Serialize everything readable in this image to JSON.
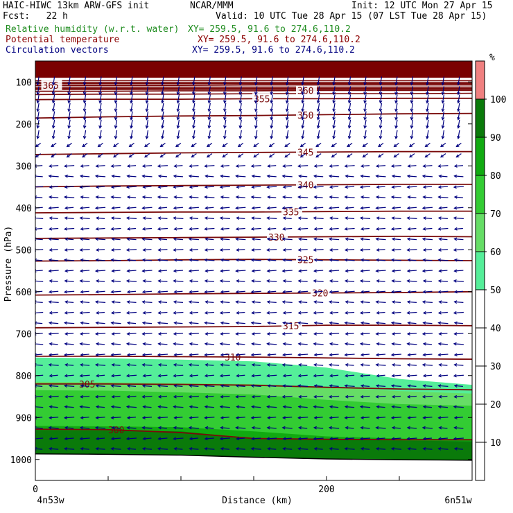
{
  "header": {
    "title_left": "HAIC-HIWC 13km ARW-GFS init",
    "source": "NCAR/MMM",
    "init": "Init: 12 UTC Mon 27 Apr 15",
    "fcst": "Fcst:   22 h",
    "valid": "Valid: 10 UTC Tue 28 Apr 15 (07 LST Tue 28 Apr 15)",
    "fields": [
      {
        "name": "Relative humidity (w.r.t. water)",
        "xy": "XY= 259.5, 91.6 to 274.6,110.2",
        "color": "#1e8c1e"
      },
      {
        "name": "Potential temperature",
        "xy": "XY= 259.5, 91.6 to 274.6,110.2",
        "color": "#8b0000"
      },
      {
        "name": "Circulation vectors",
        "xy": "XY= 259.5, 91.6 to 274.6,110.2",
        "color": "#000080"
      }
    ]
  },
  "colors": {
    "theta": "#7a0a0a",
    "vector": "#000080",
    "ground": "#000000"
  },
  "chart_data": {
    "type": "cross-section",
    "xlabel": "Distance (km)",
    "ylabel": "Pressure (hPa)",
    "xlim": [
      0,
      300
    ],
    "ylim": [
      1050,
      50
    ],
    "x_ticks": [
      0,
      50,
      100,
      150,
      200,
      250,
      300
    ],
    "x_tick_labels": [
      "0",
      "200"
    ],
    "x_tick_label_values": [
      0,
      200
    ],
    "y_ticks": [
      100,
      200,
      300,
      400,
      500,
      600,
      700,
      800,
      900,
      1000
    ],
    "x_endpoint_labels": [
      "4n53w",
      "6n51w"
    ],
    "colorbar": {
      "unit": "%",
      "levels": [
        10,
        20,
        30,
        40,
        50,
        60,
        70,
        80,
        90,
        100
      ],
      "bins": [
        {
          "from": 0,
          "to": 50,
          "color": "#ffffff"
        },
        {
          "from": 50,
          "to": 60,
          "color": "#55ee99"
        },
        {
          "from": 60,
          "to": 70,
          "color": "#66dd66"
        },
        {
          "from": 70,
          "to": 80,
          "color": "#33cc33"
        },
        {
          "from": 80,
          "to": 90,
          "color": "#11aa11"
        },
        {
          "from": 90,
          "to": 100,
          "color": "#0a7a0a"
        },
        {
          "from": 100,
          "to": 110,
          "color": "#f08080"
        }
      ]
    },
    "rh_regions": [
      {
        "level": 50,
        "x": [
          0,
          50,
          100,
          150,
          200,
          250,
          300
        ],
        "top": [
          757,
          759,
          762,
          766,
          781,
          808,
          822
        ]
      },
      {
        "level": 60,
        "x": [
          0,
          50,
          100,
          150,
          200,
          250,
          300
        ],
        "top": [
          815,
          816,
          818,
          820,
          827,
          837,
          843
        ]
      },
      {
        "level": 70,
        "x": [
          0,
          50,
          100,
          150,
          200,
          250,
          300
        ],
        "top": [
          835,
          836,
          840,
          845,
          858,
          868,
          872
        ]
      },
      {
        "level": 80,
        "x": [
          0,
          50,
          100,
          150,
          200,
          250,
          300
        ],
        "top": [
          920,
          921,
          923,
          933,
          945,
          950,
          952
        ]
      },
      {
        "level": 90,
        "x": [
          0,
          50,
          100,
          150,
          200,
          250,
          300
        ],
        "top": [
          930,
          931,
          933,
          950,
          952,
          955,
          957
        ]
      }
    ],
    "rh_top_band": {
      "level": 90,
      "from_hpa": 50,
      "to_hpa": 90
    },
    "theta_contours": [
      {
        "label": "300",
        "x": [
          0,
          50,
          100,
          150,
          200,
          250,
          300
        ],
        "p": [
          928,
          929,
          936,
          950,
          952,
          953,
          953
        ]
      },
      {
        "label": "305",
        "x": [
          0,
          50,
          100,
          150,
          200,
          250,
          300
        ],
        "p": [
          820,
          820,
          821,
          823,
          828,
          832,
          834
        ]
      },
      {
        "label": "310",
        "x": [
          0,
          50,
          100,
          150,
          200,
          250,
          300
        ],
        "p": [
          754,
          754,
          755,
          756,
          758,
          760,
          761
        ]
      },
      {
        "label": "315",
        "x": [
          0,
          50,
          100,
          150,
          200,
          250,
          300
        ],
        "p": [
          686,
          685,
          684,
          683,
          680,
          680,
          681
        ]
      },
      {
        "label": "320",
        "x": [
          0,
          50,
          100,
          150,
          200,
          250,
          300
        ],
        "p": [
          608,
          607,
          605,
          604,
          603,
          602,
          600
        ]
      },
      {
        "label": "325",
        "x": [
          0,
          50,
          100,
          150,
          200,
          250,
          300
        ],
        "p": [
          527,
          526,
          524,
          523,
          524,
          525,
          526
        ]
      },
      {
        "label": "330",
        "x": [
          0,
          50,
          100,
          150,
          200,
          250,
          300
        ],
        "p": [
          473,
          472,
          471,
          470,
          469,
          468,
          469
        ]
      },
      {
        "label": "335",
        "x": [
          0,
          50,
          100,
          150,
          200,
          250,
          300
        ],
        "p": [
          412,
          411,
          410,
          410,
          409,
          408,
          408
        ]
      },
      {
        "label": "340",
        "x": [
          0,
          50,
          100,
          150,
          200,
          250,
          300
        ],
        "p": [
          350,
          348,
          347,
          346,
          345,
          344,
          344
        ]
      },
      {
        "label": "345",
        "x": [
          0,
          50,
          100,
          150,
          200,
          250,
          300
        ],
        "p": [
          273,
          271,
          269,
          268,
          267,
          266,
          266
        ]
      },
      {
        "label": "350",
        "x": [
          0,
          50,
          100,
          150,
          200,
          250,
          300
        ],
        "p": [
          186,
          183,
          181,
          180,
          178,
          176,
          175
        ]
      },
      {
        "label": "355",
        "x": [
          0,
          50,
          100,
          150,
          200,
          250,
          300
        ],
        "p": [
          142,
          141,
          141,
          140,
          140,
          139,
          139
        ]
      },
      {
        "label": "360",
        "x": [
          0,
          50,
          100,
          150,
          200,
          250,
          300
        ],
        "p": [
          122,
          122,
          121,
          121,
          120,
          120,
          120
        ]
      },
      {
        "label": "365",
        "x": [
          0,
          50,
          100,
          150,
          200,
          250,
          300
        ],
        "p": [
          108,
          108,
          108,
          107,
          107,
          107,
          107
        ]
      }
    ],
    "theta_extra_lines": [
      {
        "p": [
          97,
          97,
          97,
          97,
          97,
          97,
          97
        ]
      },
      {
        "p": [
          101,
          101,
          101,
          101,
          101,
          101,
          101
        ]
      },
      {
        "p": [
          104,
          104,
          104,
          104,
          104,
          104,
          104
        ]
      },
      {
        "p": [
          112,
          112,
          112,
          112,
          112,
          112,
          112
        ]
      },
      {
        "p": [
          115,
          115,
          115,
          115,
          115,
          115,
          115
        ]
      },
      {
        "p": [
          118,
          118,
          118,
          118,
          118,
          118,
          118
        ]
      },
      {
        "p": [
          130,
          129,
          129,
          128,
          128,
          128,
          127
        ]
      }
    ],
    "theta_label_x": [
      50,
      30,
      130,
      170,
      190,
      180,
      160,
      170,
      180,
      180,
      180,
      150,
      180,
      5
    ],
    "ground_p": [
      988,
      989,
      991,
      996,
      1000,
      1002,
      1003
    ],
    "ground_x": [
      0,
      50,
      100,
      150,
      200,
      250,
      300
    ],
    "vector_field": {
      "x_spacing_km": 10.7,
      "levels_hpa": [
        97,
        120,
        140,
        160,
        180,
        200,
        225,
        250,
        275,
        300,
        325,
        350,
        375,
        400,
        425,
        450,
        475,
        500,
        525,
        550,
        575,
        600,
        625,
        650,
        675,
        700,
        725,
        750,
        775,
        800,
        825,
        850,
        875,
        900,
        925,
        950,
        975
      ],
      "notes": "upper levels mostly vertical (downward) arrows, lower levels westward (leftward) arrows"
    }
  }
}
